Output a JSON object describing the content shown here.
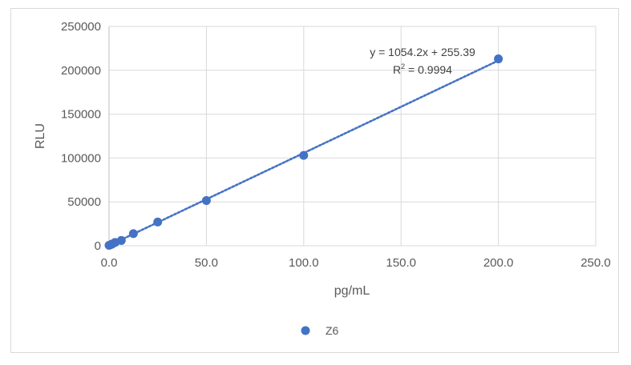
{
  "chart_data": {
    "type": "scatter",
    "title": "",
    "xlabel": "pg/mL",
    "ylabel": "RLU",
    "xlim": [
      0,
      250
    ],
    "ylim": [
      0,
      250000
    ],
    "x_ticks": [
      0,
      50,
      100,
      150,
      200,
      250
    ],
    "x_tick_labels": [
      "0.0",
      "50.0",
      "100.0",
      "150.0",
      "200.0",
      "250.0"
    ],
    "y_ticks": [
      0,
      50000,
      100000,
      150000,
      200000,
      250000
    ],
    "y_tick_labels": [
      "0",
      "50000",
      "100000",
      "150000",
      "200000",
      "250000"
    ],
    "grid": true,
    "legend_position": "bottom",
    "series": [
      {
        "name": "Z6",
        "color": "#4472C4",
        "x": [
          0,
          0.8,
          1.6,
          3.1,
          6.3,
          12.5,
          25,
          50,
          100,
          200
        ],
        "y": [
          500,
          1100,
          2000,
          3800,
          6000,
          13800,
          27000,
          51500,
          103000,
          213000
        ]
      }
    ],
    "trendline": {
      "type": "linear",
      "slope": 1054.2,
      "intercept": 255.39,
      "x_range": [
        0,
        200
      ],
      "color": "#4472C4",
      "equation_text": "y = 1054.2x + 255.39",
      "r2_prefix": "R",
      "r2_sup": "2",
      "r2_suffix": " = 0.9994"
    }
  }
}
